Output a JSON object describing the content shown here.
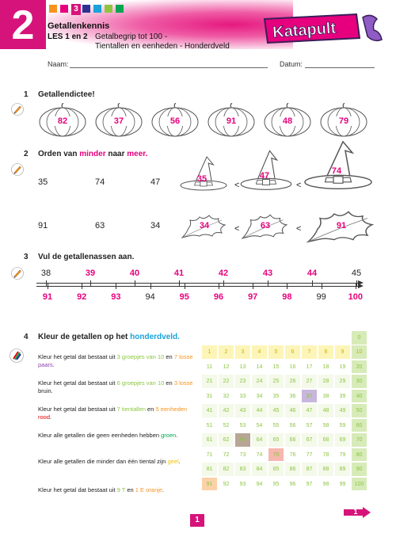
{
  "header": {
    "chapter": "2",
    "lesson_badge": "3",
    "title": "Getallenkennis",
    "lessons": "LES 1 en 2",
    "subtitle_line1": "Getalbegrip tot 100 -",
    "subtitle_line2": "Tientallen en eenheden - Honderdveld",
    "brand": "Katapult",
    "tab_colors": [
      "#f7941d",
      "#e6007e",
      "#d6137a",
      "#2e3192",
      "#1aa3d9",
      "#8cc63f",
      "#00a651"
    ]
  },
  "name_line": {
    "name_label": "Naam:",
    "date_label": "Datum:"
  },
  "q1": {
    "number": "1",
    "title": "Getallendictee!",
    "pumpkins": [
      "82",
      "37",
      "56",
      "91",
      "48",
      "79"
    ]
  },
  "q2": {
    "number": "2",
    "title_part1": "Orden van ",
    "title_minder": "minder",
    "title_part2": " naar ",
    "title_meer": "meer.",
    "row1_numbers": [
      "35",
      "74",
      "47"
    ],
    "row1_hats": [
      "35",
      "47",
      "74"
    ],
    "row2_numbers": [
      "91",
      "63",
      "34"
    ],
    "row2_leaves": [
      "34",
      "63",
      "91"
    ],
    "less_than": "<"
  },
  "q3": {
    "number": "3",
    "title": "Vul de getallenassen aan.",
    "line1": [
      "38",
      "39",
      "40",
      "41",
      "42",
      "43",
      "44",
      "45"
    ],
    "line1_given": [
      true,
      false,
      false,
      false,
      false,
      false,
      false,
      true
    ],
    "line2": [
      "91",
      "92",
      "93",
      "94",
      "95",
      "96",
      "97",
      "98",
      "99",
      "100"
    ],
    "line2_given": [
      false,
      false,
      false,
      true,
      false,
      false,
      false,
      false,
      true,
      false
    ]
  },
  "q4": {
    "number": "4",
    "title_part1": "Kleur de getallen op het ",
    "title_blue": "honderdveld.",
    "instructions": [
      {
        "parts": [
          [
            "Kleur het getal dat bestaat uit ",
            "#222"
          ],
          [
            "3 groepjes van 10",
            "#8cc63f"
          ],
          [
            " en ",
            "#222"
          ],
          [
            "7 losse",
            "#f7941d"
          ],
          [
            " ",
            "#222"
          ],
          [
            "paars",
            "#8e44ad"
          ],
          [
            ".",
            "#222"
          ]
        ]
      },
      {
        "parts": [
          [
            "Kleur het getal dat bestaat uit ",
            "#222"
          ],
          [
            "6 groepjes van 10",
            "#8cc63f"
          ],
          [
            " en ",
            "#222"
          ],
          [
            "3 losse",
            "#f7941d"
          ],
          [
            " bruin.",
            "#222"
          ]
        ]
      },
      {
        "parts": [
          [
            "Kleur het getal dat bestaat uit ",
            "#222"
          ],
          [
            "7 tientallen",
            "#8cc63f"
          ],
          [
            " en ",
            "#222"
          ],
          [
            "5 eenheden",
            "#f7941d"
          ],
          [
            " ",
            "#222"
          ],
          [
            "rood",
            "#e60000"
          ],
          [
            ".",
            "#222"
          ]
        ]
      },
      {
        "parts": [
          [
            "Kleur alle getallen die geen eenheden hebben ",
            "#222"
          ],
          [
            "groen",
            "#00a651"
          ],
          [
            ".",
            "#222"
          ]
        ]
      },
      {
        "parts": [
          [
            "Kleur alle getallen die minder dan één tiental zijn ",
            "#222"
          ],
          [
            "geel",
            "#f5c400"
          ],
          [
            ".",
            "#222"
          ]
        ]
      },
      {
        "parts": [
          [
            "Kleur het getal dat bestaat uit ",
            "#222"
          ],
          [
            "9 T",
            "#8cc63f"
          ],
          [
            " en ",
            "#222"
          ],
          [
            "1 E",
            "#f7941d"
          ],
          [
            " ",
            "#222"
          ],
          [
            "oranje",
            "#f7941d"
          ],
          [
            ".",
            "#222"
          ]
        ]
      }
    ],
    "grid_top_cell": "0",
    "colored_cells": {
      "37": "#c9b6dc",
      "63": "#b7a596",
      "75": "#f6b7ae",
      "91": "#fbd2a8"
    }
  },
  "footer": {
    "page": "1",
    "next_arrow": "1"
  }
}
